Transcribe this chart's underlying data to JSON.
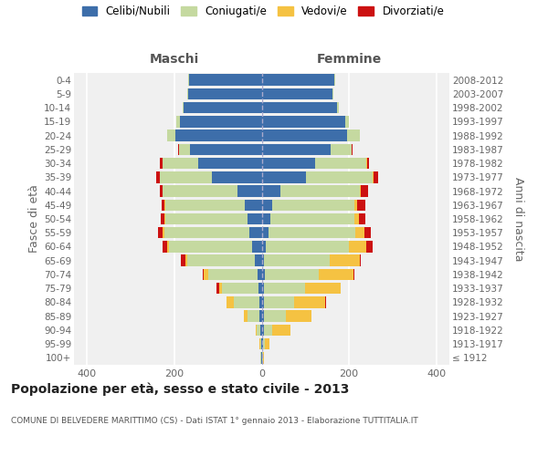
{
  "age_groups": [
    "100+",
    "95-99",
    "90-94",
    "85-89",
    "80-84",
    "75-79",
    "70-74",
    "65-69",
    "60-64",
    "55-59",
    "50-54",
    "45-49",
    "40-44",
    "35-39",
    "30-34",
    "25-29",
    "20-24",
    "15-19",
    "10-14",
    "5-9",
    "0-4"
  ],
  "birth_years": [
    "≤ 1912",
    "1913-1917",
    "1918-1922",
    "1923-1927",
    "1928-1932",
    "1933-1937",
    "1938-1942",
    "1943-1947",
    "1948-1952",
    "1953-1957",
    "1958-1962",
    "1963-1967",
    "1968-1972",
    "1973-1977",
    "1978-1982",
    "1983-1987",
    "1988-1992",
    "1993-1997",
    "1998-2002",
    "2003-2007",
    "2008-2012"
  ],
  "males_celibe": [
    2,
    2,
    3,
    5,
    5,
    8,
    10,
    15,
    22,
    28,
    32,
    38,
    55,
    115,
    145,
    165,
    198,
    188,
    178,
    168,
    167
  ],
  "males_coniugato": [
    1,
    2,
    8,
    28,
    58,
    82,
    112,
    155,
    190,
    195,
    188,
    183,
    172,
    118,
    83,
    24,
    18,
    8,
    4,
    2,
    1
  ],
  "males_vedovo": [
    0,
    1,
    3,
    8,
    18,
    8,
    10,
    5,
    5,
    3,
    2,
    1,
    1,
    0,
    0,
    0,
    0,
    0,
    0,
    0,
    0
  ],
  "males_divorziato": [
    0,
    0,
    0,
    0,
    0,
    5,
    2,
    10,
    10,
    12,
    10,
    8,
    5,
    8,
    5,
    2,
    1,
    0,
    0,
    0,
    0
  ],
  "females_nubile": [
    2,
    3,
    5,
    5,
    5,
    5,
    8,
    5,
    10,
    15,
    20,
    25,
    42,
    102,
    122,
    158,
    196,
    192,
    172,
    162,
    167
  ],
  "females_coniugata": [
    2,
    5,
    20,
    50,
    70,
    95,
    122,
    150,
    190,
    200,
    193,
    188,
    183,
    153,
    118,
    48,
    28,
    8,
    4,
    2,
    1
  ],
  "females_vedova": [
    2,
    10,
    40,
    60,
    70,
    80,
    80,
    70,
    40,
    20,
    10,
    5,
    3,
    2,
    1,
    1,
    0,
    0,
    0,
    0,
    0
  ],
  "females_divorziata": [
    0,
    0,
    0,
    0,
    2,
    2,
    2,
    2,
    15,
    15,
    15,
    20,
    15,
    10,
    5,
    2,
    1,
    0,
    0,
    0,
    0
  ],
  "colors": {
    "celibe": "#3d6eaa",
    "coniugato": "#c5d9a0",
    "vedovo": "#f5c242",
    "divorziato": "#cc1111"
  },
  "xlim": 430,
  "xticks": [
    -400,
    -200,
    0,
    200,
    400
  ],
  "title": "Popolazione per età, sesso e stato civile - 2013",
  "subtitle": "COMUNE DI BELVEDERE MARITTIMO (CS) - Dati ISTAT 1° gennaio 2013 - Elaborazione TUTTITALIA.IT",
  "label_maschi": "Maschi",
  "label_femmine": "Femmine",
  "ylabel_left": "Fasce di età",
  "ylabel_right": "Anni di nascita",
  "legend": [
    "Celibi/Nubili",
    "Coniugati/e",
    "Vedovi/e",
    "Divorziati/e"
  ],
  "bg_color": "#f0f0f0",
  "grid_color": "white"
}
